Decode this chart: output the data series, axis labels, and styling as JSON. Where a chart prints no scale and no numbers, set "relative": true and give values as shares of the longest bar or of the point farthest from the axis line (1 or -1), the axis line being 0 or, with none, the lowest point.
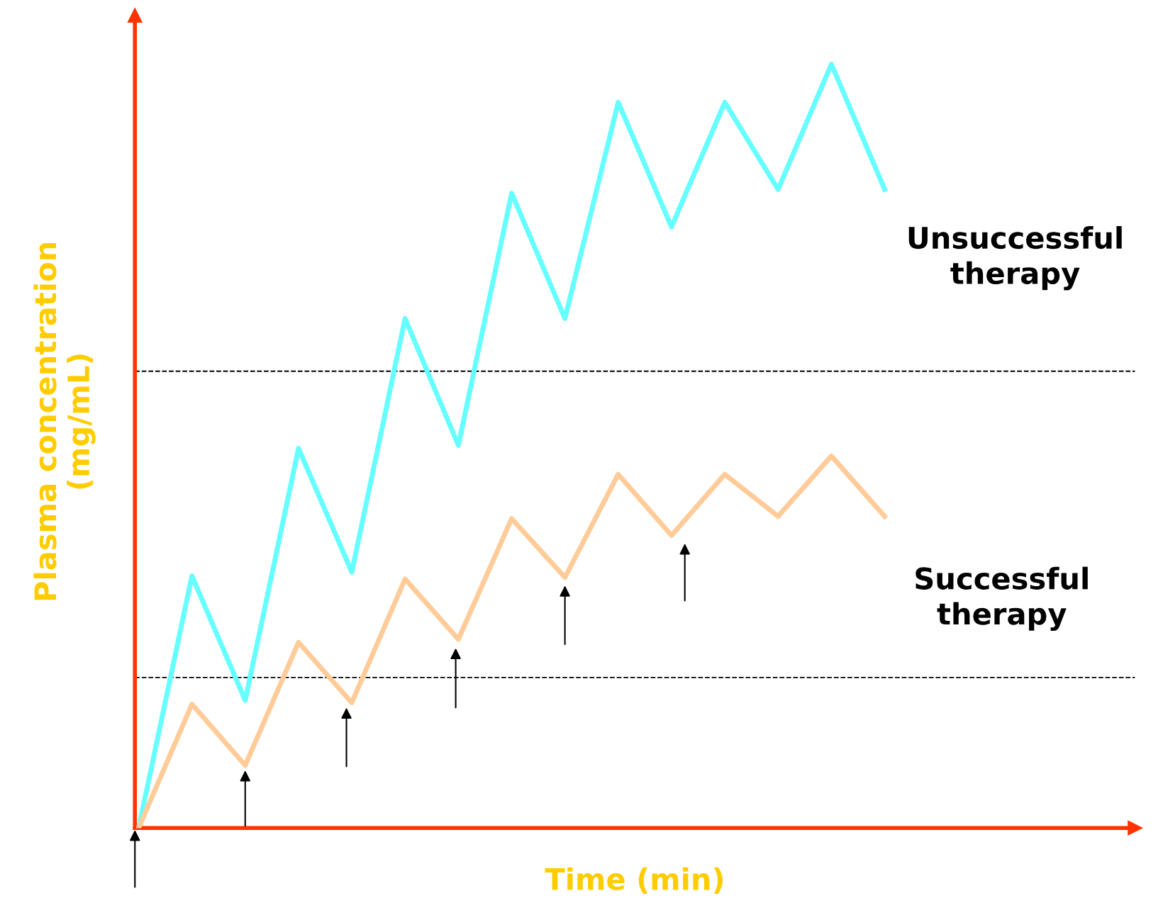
{
  "chart_data": {
    "type": "line",
    "relative": true,
    "xlabel": "Time (min)",
    "ylabel": "Plasma concentration\n(mg/mL)",
    "categories": [
      null,
      null,
      null,
      null,
      null,
      null,
      null,
      null,
      null,
      null,
      null,
      null,
      null,
      null,
      null
    ],
    "series": [
      {
        "name": "Unsuccessful\ntherapy",
        "color": "#66ffff",
        "values": [
          0,
          0.33,
          0.167,
          0.497,
          0.335,
          0.667,
          0.501,
          0.831,
          0.667,
          0.95,
          0.787,
          0.95,
          0.836,
          1,
          0.836
        ]
      },
      {
        "name": "Successful\ntherapy",
        "color": "#ffcc99",
        "values": [
          0,
          0.162,
          0.082,
          0.243,
          0.164,
          0.326,
          0.247,
          0.405,
          0.328,
          0.463,
          0.383,
          0.463,
          0.408,
          0.487,
          0.408
        ]
      }
    ],
    "ref_lines": [
      {
        "axis": "y",
        "value": 0.598,
        "color": "#000000",
        "line_style": "dashed"
      },
      {
        "axis": "y",
        "value": 0.197,
        "color": "#000000",
        "line_style": "dashed"
      }
    ],
    "legend": false,
    "marker": "none",
    "line_style": "solid",
    "tick_labels": false
  }
}
